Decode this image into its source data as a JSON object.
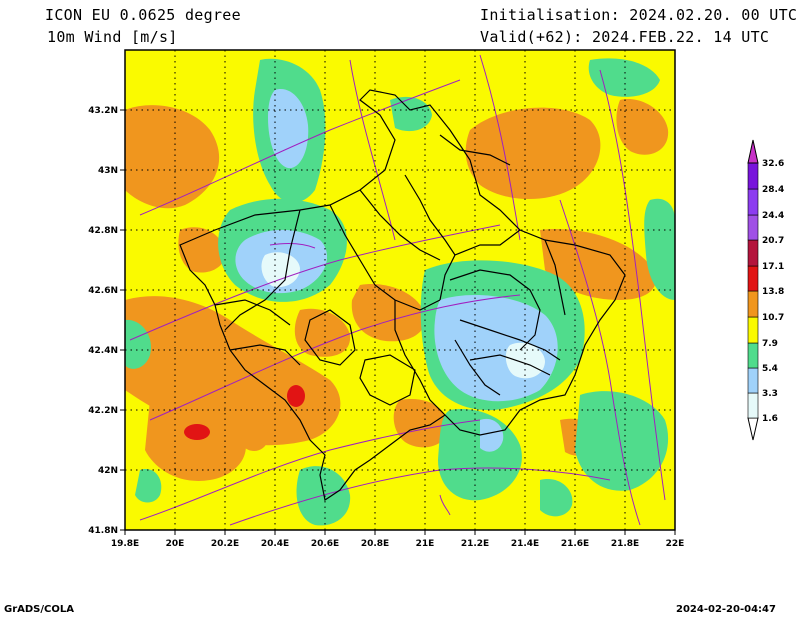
{
  "header": {
    "model": "ICON EU 0.0625 degree",
    "variable": "10m Wind [m/s]",
    "init": "Initialisation: 2024.02.20. 00 UTC",
    "valid": "Valid(+62): 2024.FEB.22. 14 UTC"
  },
  "axes": {
    "lon_ticks": [
      "19.8E",
      "20E",
      "20.2E",
      "20.4E",
      "20.6E",
      "20.8E",
      "21E",
      "21.2E",
      "21.4E",
      "21.6E",
      "21.8E",
      "22E"
    ],
    "lat_ticks": [
      "43.2N",
      "43N",
      "42.8N",
      "42.6N",
      "42.4N",
      "42.2N",
      "42N",
      "41.8N"
    ]
  },
  "legend": {
    "labels": [
      "1.6",
      "3.3",
      "5.4",
      "7.9",
      "10.7",
      "13.8",
      "17.1",
      "20.7",
      "24.4",
      "28.4",
      "32.6"
    ],
    "colors": [
      "#e6fafa",
      "#a0d2fa",
      "#50dc8c",
      "#f0f050",
      "#fafa00",
      "#f0961e",
      "#e14614",
      "#b4143c",
      "#a050e6",
      "#7814dc",
      "#c832c8"
    ]
  },
  "colors": {
    "yellow": "#fafa00",
    "orange": "#f0961e",
    "green": "#50dc8c",
    "lightblue": "#a0d2fa",
    "paleblue": "#e6fafa",
    "red": "#e11414",
    "streamline": "#a020c0"
  },
  "footer": {
    "left": "GrADS/COLA",
    "right": "2024-02-20-04:47"
  }
}
